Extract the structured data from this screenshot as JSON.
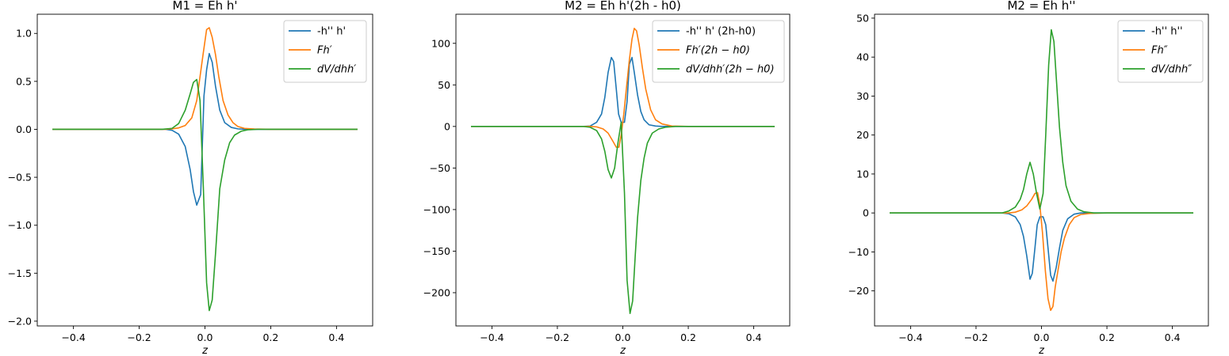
{
  "figure": {
    "description_free": true
  },
  "chart_data": [
    {
      "type": "line",
      "title": "M1 = Eh h'",
      "xlabel": "z",
      "ylabel": "",
      "xlim": [
        -0.51,
        0.51
      ],
      "ylim": [
        -2.05,
        1.2
      ],
      "xticks": [
        -0.4,
        -0.2,
        0.0,
        0.2,
        0.4
      ],
      "xtick_labels": [
        "−0.4",
        "−0.2",
        "0.0",
        "0.2",
        "0.4"
      ],
      "yticks": [
        -2.0,
        -1.5,
        -1.0,
        -0.5,
        0.0,
        0.5,
        1.0
      ],
      "ytick_labels": [
        "−2.0",
        "−1.5",
        "−1.0",
        "−0.5",
        "0.0",
        "0.5",
        "1.0"
      ],
      "legend_position": "top-right",
      "series": [
        {
          "name": "-h'' h'",
          "color": "#1f77b4",
          "x": [
            -0.464,
            -0.12,
            -0.1,
            -0.08,
            -0.06,
            -0.045,
            -0.035,
            -0.025,
            -0.013,
            -0.003,
            0.005,
            0.013,
            0.022,
            0.032,
            0.045,
            0.06,
            0.08,
            0.1,
            0.12,
            0.464
          ],
          "y": [
            0,
            0,
            -0.01,
            -0.05,
            -0.18,
            -0.42,
            -0.65,
            -0.79,
            -0.68,
            0.35,
            0.62,
            0.79,
            0.7,
            0.45,
            0.2,
            0.07,
            0.02,
            0.005,
            0,
            0
          ]
        },
        {
          "name": "Fh′",
          "color": "#ff7f0e",
          "x": [
            -0.464,
            -0.12,
            -0.1,
            -0.08,
            -0.06,
            -0.04,
            -0.025,
            -0.015,
            -0.005,
            0.005,
            0.013,
            0.022,
            0.032,
            0.042,
            0.055,
            0.07,
            0.085,
            0.1,
            0.12,
            0.15,
            0.2,
            0.464
          ],
          "y": [
            0,
            0,
            0.005,
            0.015,
            0.04,
            0.12,
            0.3,
            0.55,
            0.8,
            1.04,
            1.06,
            0.96,
            0.78,
            0.55,
            0.3,
            0.15,
            0.07,
            0.03,
            0.01,
            0.003,
            0,
            0
          ]
        },
        {
          "name": "dV/dhh′",
          "color": "#2ca02c",
          "x": [
            -0.464,
            -0.13,
            -0.1,
            -0.08,
            -0.06,
            -0.045,
            -0.035,
            -0.025,
            -0.015,
            -0.005,
            0.005,
            0.013,
            0.022,
            0.032,
            0.045,
            0.06,
            0.075,
            0.09,
            0.11,
            0.13,
            0.16,
            0.2,
            0.464
          ],
          "y": [
            0,
            0,
            0.01,
            0.06,
            0.2,
            0.37,
            0.49,
            0.52,
            0.3,
            -0.6,
            -1.6,
            -1.89,
            -1.78,
            -1.3,
            -0.62,
            -0.32,
            -0.14,
            -0.06,
            -0.02,
            -0.005,
            0,
            0,
            0
          ]
        }
      ]
    },
    {
      "type": "line",
      "title": "M2 = Eh h'(2h - h0)",
      "xlabel": "z",
      "ylabel": "",
      "xlim": [
        -0.51,
        0.51
      ],
      "ylim": [
        -240,
        135
      ],
      "xticks": [
        -0.4,
        -0.2,
        0.0,
        0.2,
        0.4
      ],
      "xtick_labels": [
        "−0.4",
        "−0.2",
        "0.0",
        "0.2",
        "0.4"
      ],
      "yticks": [
        -200,
        -150,
        -100,
        -50,
        0,
        50,
        100
      ],
      "ytick_labels": [
        "−200",
        "−150",
        "−100",
        "−50",
        "0",
        "50",
        "100"
      ],
      "legend_position": "top-right",
      "series": [
        {
          "name": "-h'' h' (2h-h0)",
          "color": "#1f77b4",
          "x": [
            -0.464,
            -0.12,
            -0.1,
            -0.08,
            -0.065,
            -0.055,
            -0.045,
            -0.035,
            -0.028,
            -0.02,
            -0.013,
            -0.005,
            0.005,
            0.013,
            0.02,
            0.028,
            0.035,
            0.045,
            0.055,
            0.065,
            0.08,
            0.1,
            0.12,
            0.464
          ],
          "y": [
            0,
            0,
            0.5,
            5,
            15,
            35,
            65,
            83,
            78,
            45,
            15,
            5,
            5,
            30,
            75,
            83,
            65,
            38,
            18,
            8,
            2,
            0.5,
            0,
            0
          ]
        },
        {
          "name": "Fh′(2h − h0)",
          "color": "#ff7f0e",
          "x": [
            -0.464,
            -0.1,
            -0.08,
            -0.06,
            -0.045,
            -0.03,
            -0.02,
            -0.012,
            -0.005,
            0.003,
            0.012,
            0.02,
            0.028,
            0.035,
            0.042,
            0.05,
            0.06,
            0.07,
            0.085,
            0.1,
            0.12,
            0.15,
            0.2,
            0.464
          ],
          "y": [
            0,
            0,
            -0.5,
            -3,
            -8,
            -18,
            -25,
            -25,
            -10,
            15,
            50,
            80,
            105,
            118,
            115,
            98,
            70,
            45,
            20,
            8,
            3,
            0.5,
            0,
            0
          ]
        },
        {
          "name": "dV/dhh′(2h − h0)",
          "color": "#2ca02c",
          "x": [
            -0.464,
            -0.12,
            -0.1,
            -0.08,
            -0.065,
            -0.055,
            -0.045,
            -0.035,
            -0.025,
            -0.015,
            -0.005,
            0.005,
            0.013,
            0.022,
            0.03,
            0.038,
            0.045,
            0.055,
            0.065,
            0.075,
            0.09,
            0.11,
            0.13,
            0.16,
            0.464
          ],
          "y": [
            0,
            0,
            -1,
            -5,
            -15,
            -30,
            -52,
            -62,
            -50,
            -20,
            5,
            -80,
            -185,
            -225,
            -210,
            -155,
            -110,
            -65,
            -38,
            -20,
            -8,
            -3,
            -1,
            0,
            0
          ]
        }
      ]
    },
    {
      "type": "line",
      "title": "M2 = Eh h''",
      "xlabel": "z",
      "ylabel": "",
      "xlim": [
        -0.51,
        0.51
      ],
      "ylim": [
        -29,
        51
      ],
      "xticks": [
        -0.4,
        -0.2,
        0.0,
        0.2,
        0.4
      ],
      "xtick_labels": [
        "−0.4",
        "−0.2",
        "0.0",
        "0.2",
        "0.4"
      ],
      "yticks": [
        -20,
        -10,
        0,
        10,
        20,
        30,
        40,
        50
      ],
      "ytick_labels": [
        "−20",
        "−10",
        "0",
        "10",
        "20",
        "30",
        "40",
        "50"
      ],
      "legend_position": "top-right",
      "series": [
        {
          "name": "-h'' h''",
          "color": "#1f77b4",
          "x": [
            -0.464,
            -0.12,
            -0.1,
            -0.08,
            -0.065,
            -0.055,
            -0.045,
            -0.035,
            -0.028,
            -0.02,
            -0.013,
            -0.005,
            0.005,
            0.013,
            0.02,
            0.028,
            0.035,
            0.045,
            0.055,
            0.065,
            0.08,
            0.1,
            0.12,
            0.464
          ],
          "y": [
            0,
            0,
            -0.2,
            -1,
            -3,
            -6,
            -11,
            -17,
            -15.5,
            -9,
            -3,
            -1,
            -1,
            -3,
            -9,
            -16,
            -17.5,
            -14,
            -9,
            -4.5,
            -1.5,
            -0.3,
            0,
            0
          ]
        },
        {
          "name": "Fh″",
          "color": "#ff7f0e",
          "x": [
            -0.464,
            -0.1,
            -0.08,
            -0.06,
            -0.045,
            -0.03,
            -0.02,
            -0.012,
            -0.005,
            0.003,
            0.012,
            0.02,
            0.028,
            0.035,
            0.042,
            0.05,
            0.06,
            0.07,
            0.085,
            0.1,
            0.12,
            0.15,
            0.2,
            0.464
          ],
          "y": [
            0,
            0,
            0.2,
            0.8,
            1.8,
            3.5,
            5,
            5.2,
            2,
            -5,
            -15,
            -22,
            -25,
            -24,
            -19,
            -15,
            -10,
            -6.5,
            -3,
            -1.2,
            -0.4,
            -0.1,
            0,
            0
          ]
        },
        {
          "name": "dV/dhh″",
          "color": "#2ca02c",
          "x": [
            -0.464,
            -0.12,
            -0.1,
            -0.08,
            -0.065,
            -0.055,
            -0.045,
            -0.035,
            -0.025,
            -0.015,
            -0.005,
            0.005,
            0.013,
            0.022,
            0.03,
            0.038,
            0.045,
            0.055,
            0.065,
            0.075,
            0.09,
            0.11,
            0.13,
            0.16,
            0.464
          ],
          "y": [
            0,
            0,
            0.5,
            1.5,
            3.5,
            6,
            10,
            13,
            10,
            5,
            1,
            5,
            20,
            38,
            47,
            44,
            35,
            22,
            13,
            7,
            3,
            1,
            0.3,
            0,
            0
          ]
        }
      ]
    }
  ]
}
